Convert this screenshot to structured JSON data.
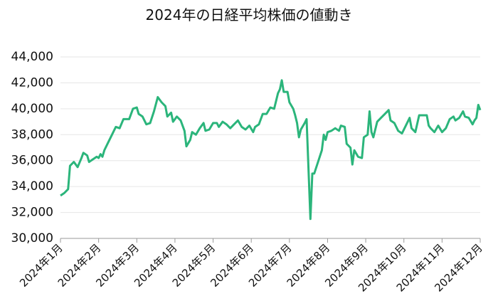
{
  "chart_data": {
    "type": "line",
    "title": "2024年の日経平均株価の値動き",
    "x": [
      0,
      0.1,
      0.2,
      0.25,
      0.35,
      0.45,
      0.55,
      0.6,
      0.7,
      0.75,
      0.85,
      0.95,
      1.0,
      1.05,
      1.1,
      1.15,
      1.25,
      1.35,
      1.45,
      1.55,
      1.65,
      1.8,
      1.9,
      2.0,
      2.05,
      2.15,
      2.25,
      2.35,
      2.45,
      2.55,
      2.65,
      2.75,
      2.8,
      2.9,
      2.95,
      3.05,
      3.15,
      3.25,
      3.3,
      3.4,
      3.45,
      3.55,
      3.65,
      3.75,
      3.8,
      3.9,
      4.0,
      4.1,
      4.15,
      4.25,
      4.35,
      4.45,
      4.55,
      4.65,
      4.75,
      4.85,
      4.95,
      5.05,
      5.1,
      5.2,
      5.3,
      5.4,
      5.5,
      5.6,
      5.7,
      5.75,
      5.8,
      5.85,
      5.95,
      6.0,
      6.1,
      6.15,
      6.2,
      6.25,
      6.3,
      6.4,
      6.45,
      6.55,
      6.6,
      6.65,
      6.75,
      6.85,
      6.9,
      6.95,
      7.0,
      7.1,
      7.2,
      7.3,
      7.35,
      7.45,
      7.5,
      7.6,
      7.65,
      7.7,
      7.8,
      7.9,
      7.95,
      8.05,
      8.1,
      8.15,
      8.2,
      8.3,
      8.4,
      8.5,
      8.6,
      8.65,
      8.75,
      8.85,
      8.95,
      9.05,
      9.15,
      9.2,
      9.3,
      9.4,
      9.5,
      9.6,
      9.65,
      9.7,
      9.8,
      9.9,
      10.0,
      10.1,
      10.2,
      10.3,
      10.35,
      10.45,
      10.55,
      10.6,
      10.7,
      10.8,
      10.85,
      10.9,
      10.95,
      11.0
    ],
    "series": [
      {
        "color": "#2bb57b",
        "values": [
          33300,
          33500,
          33800,
          35600,
          35900,
          35500,
          36200,
          36600,
          36400,
          35900,
          36100,
          36300,
          36200,
          36500,
          36300,
          36800,
          37400,
          38000,
          38600,
          38500,
          39200,
          39200,
          40000,
          40100,
          39600,
          39400,
          38800,
          38900,
          39800,
          40900,
          40500,
          40200,
          39400,
          39700,
          39000,
          39400,
          39100,
          38300,
          37100,
          37600,
          38200,
          38000,
          38500,
          38900,
          38300,
          38400,
          38900,
          38900,
          38600,
          39000,
          38800,
          38500,
          38800,
          39100,
          38600,
          38400,
          38700,
          38200,
          38600,
          38800,
          39600,
          39600,
          40100,
          40000,
          41200,
          41500,
          42200,
          41300,
          41300,
          40500,
          40000,
          39500,
          38900,
          37800,
          38400,
          38900,
          39200,
          31500,
          35000,
          35000,
          35900,
          36800,
          38000,
          37600,
          38200,
          38300,
          38500,
          38300,
          38700,
          38600,
          37300,
          37000,
          35700,
          36800,
          36300,
          36200,
          37800,
          38000,
          39800,
          38200,
          37800,
          39000,
          39300,
          39600,
          39900,
          39100,
          38900,
          38300,
          38100,
          38700,
          39300,
          38500,
          38200,
          39500,
          39500,
          39500,
          38700,
          38500,
          38200,
          38700,
          38200,
          38500,
          39200,
          39400,
          39100,
          39300,
          39800,
          39400,
          39300,
          38800,
          39100,
          39300,
          40300,
          39900
        ]
      }
    ],
    "xlim": [
      0,
      11
    ],
    "xticks": [
      {
        "value": 0,
        "label": "2024年1月"
      },
      {
        "value": 1,
        "label": "2024年2月"
      },
      {
        "value": 2,
        "label": "2024年3月"
      },
      {
        "value": 3,
        "label": "2024年4月"
      },
      {
        "value": 4,
        "label": "2024年5月"
      },
      {
        "value": 5,
        "label": "2024年6月"
      },
      {
        "value": 6,
        "label": "2024年7月"
      },
      {
        "value": 7,
        "label": "2024年8月"
      },
      {
        "value": 8,
        "label": "2024年9月"
      },
      {
        "value": 9,
        "label": "2024年10月"
      },
      {
        "value": 10,
        "label": "2024年11月"
      },
      {
        "value": 11,
        "label": "2024年12月"
      }
    ],
    "ylim": [
      30000,
      44000
    ],
    "yticks": [
      {
        "value": 30000,
        "label": "30,000"
      },
      {
        "value": 32000,
        "label": "32,000"
      },
      {
        "value": 34000,
        "label": "34,000"
      },
      {
        "value": 36000,
        "label": "36,000"
      },
      {
        "value": 38000,
        "label": "38,000"
      },
      {
        "value": 40000,
        "label": "40,000"
      },
      {
        "value": 42000,
        "label": "42,000"
      },
      {
        "value": 44000,
        "label": "44,000"
      }
    ],
    "grid": true
  }
}
